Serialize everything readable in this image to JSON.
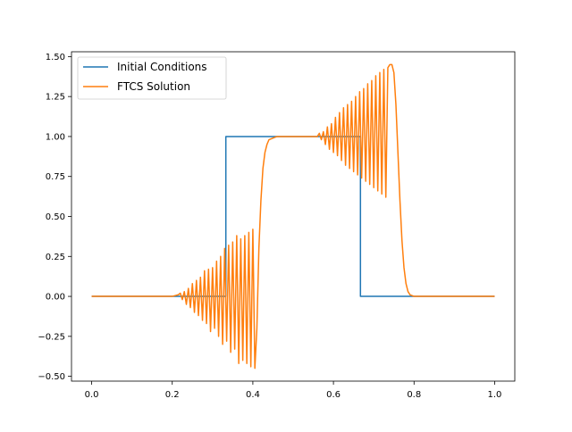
{
  "chart_data": {
    "type": "line",
    "xlim": [
      -0.05,
      1.05
    ],
    "ylim": [
      -0.53,
      1.53
    ],
    "xticks": [
      "0.0",
      "0.2",
      "0.4",
      "0.6",
      "0.8",
      "1.0"
    ],
    "yticks": [
      "−0.50",
      "−0.25",
      "0.00",
      "0.25",
      "0.50",
      "0.75",
      "1.00",
      "1.25",
      "1.50"
    ],
    "grid": false,
    "legend_placement": "upper-left",
    "series": [
      {
        "name": "Initial Conditions",
        "color": "#1f77b4",
        "x": [
          0.0,
          0.333,
          0.333,
          0.667,
          0.667,
          1.0
        ],
        "y": [
          0.0,
          0.0,
          1.0,
          1.0,
          0.0,
          0.0
        ]
      },
      {
        "name": "FTCS Solution",
        "color": "#ff7f0e",
        "x": [
          0.0,
          0.2,
          0.215,
          0.22,
          0.225,
          0.23,
          0.235,
          0.24,
          0.245,
          0.25,
          0.255,
          0.26,
          0.265,
          0.27,
          0.275,
          0.28,
          0.285,
          0.29,
          0.295,
          0.3,
          0.305,
          0.31,
          0.315,
          0.32,
          0.325,
          0.33,
          0.335,
          0.34,
          0.345,
          0.35,
          0.355,
          0.36,
          0.365,
          0.37,
          0.375,
          0.38,
          0.385,
          0.39,
          0.395,
          0.4,
          0.405,
          0.41,
          0.415,
          0.42,
          0.425,
          0.43,
          0.435,
          0.44,
          0.45,
          0.46,
          0.5,
          0.55,
          0.56,
          0.565,
          0.57,
          0.575,
          0.58,
          0.585,
          0.59,
          0.595,
          0.6,
          0.605,
          0.61,
          0.615,
          0.62,
          0.625,
          0.63,
          0.635,
          0.64,
          0.645,
          0.65,
          0.655,
          0.66,
          0.665,
          0.67,
          0.675,
          0.68,
          0.685,
          0.69,
          0.695,
          0.7,
          0.705,
          0.71,
          0.715,
          0.72,
          0.725,
          0.73,
          0.735,
          0.74,
          0.745,
          0.75,
          0.755,
          0.76,
          0.765,
          0.77,
          0.775,
          0.78,
          0.785,
          0.79,
          0.8,
          0.85,
          1.0
        ],
        "y": [
          0.0,
          0.0,
          0.01,
          0.02,
          -0.02,
          0.03,
          -0.05,
          0.05,
          -0.07,
          0.08,
          -0.1,
          0.1,
          -0.12,
          0.12,
          -0.15,
          0.16,
          -0.17,
          0.17,
          -0.22,
          0.18,
          -0.2,
          0.22,
          -0.25,
          0.25,
          -0.3,
          0.3,
          -0.28,
          0.32,
          -0.35,
          0.34,
          -0.33,
          0.38,
          -0.42,
          0.36,
          -0.4,
          0.38,
          -0.42,
          0.4,
          -0.44,
          0.42,
          -0.45,
          -0.2,
          0.3,
          0.6,
          0.8,
          0.9,
          0.95,
          0.98,
          0.99,
          1.0,
          1.0,
          1.0,
          1.0,
          1.02,
          0.98,
          1.03,
          0.95,
          1.06,
          0.92,
          1.08,
          0.9,
          1.12,
          0.88,
          1.15,
          0.85,
          1.18,
          0.82,
          1.2,
          0.8,
          1.22,
          0.78,
          1.25,
          0.76,
          1.28,
          0.74,
          1.3,
          0.72,
          1.33,
          0.7,
          1.35,
          0.68,
          1.38,
          0.66,
          1.4,
          0.64,
          1.42,
          0.62,
          1.43,
          1.45,
          1.45,
          1.4,
          1.2,
          0.9,
          0.6,
          0.35,
          0.18,
          0.08,
          0.03,
          0.01,
          0.0,
          0.0,
          0.0
        ]
      }
    ]
  }
}
